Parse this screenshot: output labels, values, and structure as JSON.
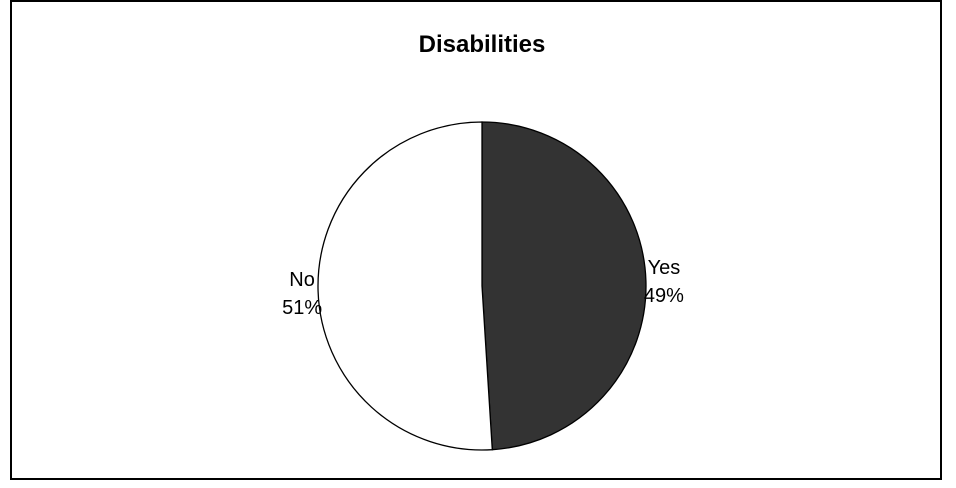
{
  "chart_data": {
    "type": "pie",
    "title": "Disabilities",
    "slices": [
      {
        "label": "Yes",
        "percent_label": "49%",
        "value": 49,
        "color": "#333333"
      },
      {
        "label": "No",
        "percent_label": "51%",
        "value": 51,
        "color": "#ffffff"
      }
    ],
    "start_angle_deg": 0,
    "direction": "clockwise",
    "stroke_color": "#000000",
    "legend": "none"
  }
}
